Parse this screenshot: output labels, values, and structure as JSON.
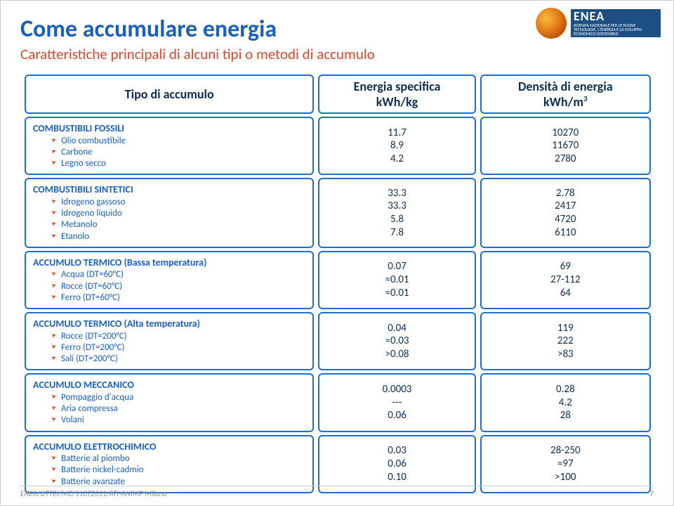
{
  "title": "Come accumulare energia",
  "subtitle": "Caratteristiche principali di alcuni tipi o metodi di accumulo",
  "logo": {
    "brand": "ENEA",
    "tagline": "AGENZIA NAZIONALE PER LE NUOVE TECNOLOGIE, L'ENERGIA E LO SVILUPPO ECONOMICO SOSTENIBILE"
  },
  "headers": {
    "col1": "Tipo di accumulo",
    "col2": "Energia specifica\nkWh/kg",
    "col3": "Densità di energia\nkWh/m"
  },
  "rows": [
    {
      "cat": "COMBUSTIBILI FOSSILI",
      "items": [
        "Olio combustibile",
        "Carbone",
        "Legno secco"
      ],
      "energy": [
        "11.7",
        "8.9",
        "4.2"
      ],
      "density": [
        "10270",
        "11670",
        "2780"
      ]
    },
    {
      "cat": "COMBUSTIBILI SINTETICI",
      "items": [
        "Idrogeno gassoso",
        "Idrogeno liquido",
        "Metanolo",
        "Etanolo"
      ],
      "energy": [
        "33.3",
        "33.3",
        "5.8",
        "7.8"
      ],
      "density": [
        "2.78",
        "2417",
        "4720",
        "6110"
      ]
    },
    {
      "cat": "ACCUMULO TERMICO (Bassa temperatura)",
      "items": [
        "Acqua (DT=60°C)",
        "Rocce (DT=60°C)",
        "Ferro (DT=60°C)"
      ],
      "energy": [
        "0.07",
        "≈0.01",
        "≈0.01"
      ],
      "density": [
        "69",
        "27-112",
        "64"
      ]
    },
    {
      "cat": "ACCUMULO TERMICO (Alta temperatura)",
      "items": [
        "Rocce (DT=200°C)",
        "Ferro (DT=200°C)",
        "Sali (DT=200°C)"
      ],
      "energy": [
        "0.04",
        "≈0.03",
        ">0.08"
      ],
      "density": [
        "119",
        "222",
        ">83"
      ]
    },
    {
      "cat": "ACCUMULO MECCANICO",
      "items": [
        "Pompaggio d'acqua",
        "Aria compressa",
        "Volani"
      ],
      "energy": [
        "0.0003",
        "---",
        "0.06"
      ],
      "density": [
        "0.28",
        "4.2",
        "28"
      ]
    },
    {
      "cat": "ACCUMULO ELETTROCHIMICO",
      "items": [
        "Batterie al piombo",
        "Batterie nickel-cadmio",
        "Batterie avanzate"
      ],
      "energy": [
        "0.03",
        "0.06",
        "0.10"
      ],
      "density": [
        "28-250",
        "≈97",
        ">100"
      ]
    }
  ],
  "footer": {
    "left": "ENEA/UTTEI/MC/11072011/ATI-ANIMP Milano",
    "page": "7"
  }
}
